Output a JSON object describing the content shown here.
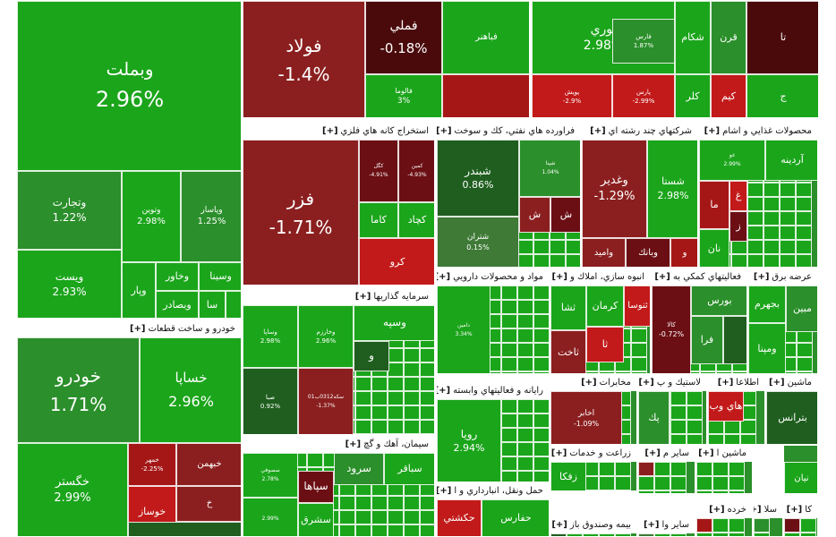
{
  "colors": {
    "g4": "#1ba51b",
    "g3": "#2b8f2b",
    "g2": "#3f7a37",
    "g1": "#1f5e1f",
    "r1": "#8b1f1f",
    "r2": "#a51717",
    "r3": "#c21a1a",
    "r4": "#6b0f14",
    "r5": "#4a0a0c"
  },
  "chart_data": {
    "type": "treemap",
    "title": "",
    "sectors": [
      {
        "id": "s-metals",
        "name": "",
        "tiles": [
          {
            "id": "t-vbmellat",
            "label": "وبملت",
            "change": "2.96%",
            "color": "g4"
          },
          {
            "id": "t-vtejarat",
            "label": "وتجارت",
            "change": "1.22%",
            "color": "g3"
          },
          {
            "id": "t-vtoein",
            "label": "وتوين",
            "change": "2.98%",
            "color": "g4"
          },
          {
            "id": "t-vpasar",
            "label": "وپاسار",
            "change": "1.25%",
            "color": "g3"
          },
          {
            "id": "t-vpost",
            "label": "ويست",
            "change": "2.93%",
            "color": "g4"
          },
          {
            "id": "t-vkhavar",
            "label": "وخاور",
            "change": "",
            "color": "g4"
          },
          {
            "id": "t-vsina",
            "label": "وسينا",
            "change": "",
            "color": "g4"
          },
          {
            "id": "t-vpar",
            "label": "وپار",
            "change": "",
            "color": "g4"
          },
          {
            "id": "t-vbsader",
            "label": "وبصادر",
            "change": "",
            "color": "g4"
          },
          {
            "id": "t-sa",
            "label": "سا",
            "change": "",
            "color": "g4"
          },
          {
            "id": "t-small-01",
            "label": "",
            "change": "",
            "color": "g4"
          }
        ]
      },
      {
        "id": "s-auto",
        "name": "خودرو و ساخت قطعات",
        "tiles": [
          {
            "id": "t-khodro",
            "label": "خودرو",
            "change": "1.71%",
            "color": "g3"
          },
          {
            "id": "t-khsapa",
            "label": "خساپا",
            "change": "2.96%",
            "color": "g4"
          },
          {
            "id": "t-khgostar",
            "label": "خگستر",
            "change": "2.99%",
            "color": "g4"
          },
          {
            "id": "t-khbahman",
            "label": "خبهمن",
            "change": "",
            "color": "r1"
          },
          {
            "id": "t-khmehr",
            "label": "خمهر",
            "change": "-2.25%",
            "color": "r2"
          },
          {
            "id": "t-kh",
            "label": "خ",
            "change": "",
            "color": "r1"
          },
          {
            "id": "t-khosaz",
            "label": "خوساز",
            "change": "",
            "color": "r3"
          },
          {
            "id": "t-auto-b1",
            "label": "",
            "change": "",
            "color": "g1"
          }
        ]
      },
      {
        "id": "s-basic",
        "name": "",
        "tiles": [
          {
            "id": "t-foolad",
            "label": "فولاد",
            "change": "-1.4%",
            "color": "r1"
          },
          {
            "id": "t-fameli",
            "label": "فملي",
            "change": "-0.18%",
            "color": "r5"
          },
          {
            "id": "t-fabahonar",
            "label": "فباهنر",
            "change": "",
            "color": "g4"
          },
          {
            "id": "t-faluma",
            "label": "فالوما",
            "change": "3%",
            "color": "g4"
          },
          {
            "id": "t-basic-s1",
            "label": "",
            "change": "",
            "color": "r2"
          }
        ]
      },
      {
        "id": "s-petro",
        "name": "",
        "tiles": [
          {
            "id": "t-noori",
            "label": "نوري",
            "change": "2.98%",
            "color": "g4"
          },
          {
            "id": "t-fars",
            "label": "فارس",
            "change": "1.87%",
            "color": "g3"
          },
          {
            "id": "t-pooyesh",
            "label": "پويش",
            "change": "-2.9%",
            "color": "r3"
          },
          {
            "id": "t-parsi",
            "label": "پارس",
            "change": "-2.99%",
            "color": "r3"
          },
          {
            "id": "t-shkam",
            "label": "شكام",
            "change": "",
            "color": "g4"
          },
          {
            "id": "t-karan",
            "label": "قرن",
            "change": "",
            "color": "g3"
          },
          {
            "id": "t-kal",
            "label": "كلر",
            "change": "",
            "color": "g4"
          },
          {
            "id": "t-kim",
            "label": "كيم",
            "change": "",
            "color": "r3"
          },
          {
            "id": "t-ta",
            "label": "تا",
            "change": "",
            "color": "r5"
          },
          {
            "id": "t-j",
            "label": "ج",
            "change": "",
            "color": "g4"
          }
        ]
      },
      {
        "id": "s-mining",
        "name": "استخراج كانه هاي فلزي",
        "tiles": [
          {
            "id": "t-fazer",
            "label": "فزر",
            "change": "-1.71%",
            "color": "r1"
          },
          {
            "id": "t-kagol",
            "label": "كگل",
            "change": "-4.91%",
            "color": "r4"
          },
          {
            "id": "t-kamin",
            "label": "كمين",
            "change": "-4.93%",
            "color": "r4"
          },
          {
            "id": "t-kama",
            "label": "كاما",
            "change": "",
            "color": "g4"
          },
          {
            "id": "t-kchad",
            "label": "كچاد",
            "change": "",
            "color": "g4"
          },
          {
            "id": "t-kro",
            "label": "كرو",
            "change": "",
            "color": "r3"
          }
        ]
      },
      {
        "id": "s-oil",
        "name": "فراورده هاي نفتي، كك و سوخت",
        "tiles": [
          {
            "id": "t-shbandar",
            "label": "شبندر",
            "change": "0.86%",
            "color": "g1"
          },
          {
            "id": "t-shtran",
            "label": "شتران",
            "change": "0.15%",
            "color": "g2"
          },
          {
            "id": "t-shpna",
            "label": "شپنا",
            "change": "1.04%",
            "color": "g3"
          },
          {
            "id": "t-sh1",
            "label": "ش",
            "change": "",
            "color": "r1"
          },
          {
            "id": "t-sh2",
            "label": "ش",
            "change": "",
            "color": "r4"
          }
        ]
      },
      {
        "id": "s-multi",
        "name": "شركتهاي چند رشته اي",
        "tiles": [
          {
            "id": "t-vghadir",
            "label": "وغدير",
            "change": "-1.29%",
            "color": "r1"
          },
          {
            "id": "t-shasta",
            "label": "شستا",
            "change": "2.98%",
            "color": "g4"
          },
          {
            "id": "t-vamid",
            "label": "واميد",
            "change": "",
            "color": "r1"
          },
          {
            "id": "t-vbank",
            "label": "وبانك",
            "change": "",
            "color": "r4"
          },
          {
            "id": "t-vo",
            "label": "و",
            "change": "",
            "color": "r2"
          }
        ]
      },
      {
        "id": "s-food",
        "name": "محصولات غذايي و اشام",
        "tiles": [
          {
            "id": "t-ardine",
            "label": "آردينه",
            "change": "",
            "color": "g4"
          },
          {
            "id": "t-ghoo",
            "label": "غو",
            "change": "2.99%",
            "color": "g4"
          },
          {
            "id": "t-ghesha",
            "label": "غ",
            "change": "",
            "color": "r3"
          },
          {
            "id": "t-ma",
            "label": "ما",
            "change": "",
            "color": "r2"
          },
          {
            "id": "t-naan",
            "label": "نان",
            "change": "",
            "color": "g4"
          },
          {
            "id": "t-z",
            "label": "ز",
            "change": "",
            "color": "r4"
          }
        ]
      },
      {
        "id": "s-pharma",
        "name": "مواد و محصولات دارويي",
        "tiles": [
          {
            "id": "t-daru1",
            "label": "دامين",
            "change": "3.34%",
            "color": "g4"
          }
        ]
      },
      {
        "id": "s-build",
        "name": "انبوه سازي، املاك و",
        "tiles": [
          {
            "id": "t-kerman",
            "label": "كرمان",
            "change": "",
            "color": "g4"
          },
          {
            "id": "t-sanosa",
            "label": "ثنوسا",
            "change": "",
            "color": "r3"
          },
          {
            "id": "t-shaa",
            "label": "ثشا",
            "change": "",
            "color": "g4"
          },
          {
            "id": "t-ta2",
            "label": "ثا",
            "change": "",
            "color": "r3"
          },
          {
            "id": "t-sasht",
            "label": "ثاخت",
            "change": "",
            "color": "r1"
          }
        ]
      },
      {
        "id": "s-finance",
        "name": "فعاليتهاي كمكي به",
        "tiles": [
          {
            "id": "t-bours",
            "label": "بورس",
            "change": "",
            "color": "g3"
          },
          {
            "id": "t-kala",
            "label": "كالا",
            "change": "-0.72%",
            "color": "r4"
          },
          {
            "id": "t-fara",
            "label": "فرا",
            "change": "",
            "color": "g3"
          },
          {
            "id": "t-fin-s1",
            "label": "",
            "change": "",
            "color": "g1"
          }
        ]
      },
      {
        "id": "s-power",
        "name": "عرضه برق",
        "tiles": [
          {
            "id": "t-bjahrom",
            "label": "بجهرم",
            "change": "",
            "color": "g4"
          },
          {
            "id": "t-mapna",
            "label": "مپنا",
            "change": "",
            "color": "g3"
          },
          {
            "id": "t-vmapna",
            "label": "ومپنا",
            "change": "",
            "color": "g4"
          },
          {
            "id": "t-mobin",
            "label": "مبين",
            "change": "",
            "color": "g3"
          }
        ]
      },
      {
        "id": "s-invest",
        "name": "سرمايه گذاريها",
        "tiles": [
          {
            "id": "t-vsapa",
            "label": "وساپا",
            "change": "2.98%",
            "color": "g4"
          },
          {
            "id": "t-vkharazm",
            "label": "وخارزم",
            "change": "2.96%",
            "color": "g4"
          },
          {
            "id": "t-vsepe",
            "label": "وسپه",
            "change": "",
            "color": "g4"
          },
          {
            "id": "t-vo2",
            "label": "و",
            "change": "",
            "color": "g1"
          },
          {
            "id": "t-sima",
            "label": "صبا",
            "change": "0.92%",
            "color": "g1"
          },
          {
            "id": "t-seke",
            "label": "سكه0312ب01",
            "change": "-1.37%",
            "color": "r1"
          }
        ]
      },
      {
        "id": "s-cement",
        "name": "سيمان، آهك و گچ",
        "tiles": [
          {
            "id": "t-sarood",
            "label": "سرود",
            "change": "",
            "color": "g3"
          },
          {
            "id": "t-sapaha",
            "label": "سپاها",
            "change": "",
            "color": "r4"
          },
          {
            "id": "t-sbaghar",
            "label": "سباقر",
            "change": "",
            "color": "g4"
          },
          {
            "id": "t-smoto",
            "label": "سصوفي",
            "change": "2.78%",
            "color": "g4"
          },
          {
            "id": "t-sharq",
            "label": "سشرق",
            "change": "",
            "color": "g4"
          },
          {
            "id": "t-cem-s1",
            "label": "",
            "change": "2.99%",
            "color": "g4"
          }
        ]
      },
      {
        "id": "s-it",
        "name": "رايانه و فعاليتهاي وابسته",
        "tiles": [
          {
            "id": "t-riva",
            "label": "رويا",
            "change": "2.94%",
            "color": "g4"
          }
        ]
      },
      {
        "id": "s-telecom",
        "name": "مخابرات",
        "tiles": [
          {
            "id": "t-akhaber",
            "label": "اخابر",
            "change": "-1.09%",
            "color": "r1"
          }
        ]
      },
      {
        "id": "s-plastic",
        "name": "لاستيك و پ",
        "tiles": [
          {
            "id": "t-pak",
            "label": "پك",
            "change": "",
            "color": "g3"
          }
        ]
      },
      {
        "id": "s-info",
        "name": "اطلاعا",
        "tiles": [
          {
            "id": "t-hiweb",
            "label": "هاي وب",
            "change": "",
            "color": "r3"
          }
        ]
      },
      {
        "id": "s-machine",
        "name": "ماشين",
        "tiles": [
          {
            "id": "t-btrans",
            "label": "بترانس",
            "change": "",
            "color": "g1"
          }
        ]
      },
      {
        "id": "s-agri",
        "name": "زراعت و خدمات",
        "tiles": [
          {
            "id": "t-zkarka",
            "label": "زفكا",
            "change": "",
            "color": "g4"
          }
        ]
      },
      {
        "id": "s-transport",
        "name": "حمل ونقل، انبارداري و ا",
        "tiles": [
          {
            "id": "t-hafars",
            "label": "حفارس",
            "change": "",
            "color": "g4"
          },
          {
            "id": "t-hakshti",
            "label": "حكشتي",
            "change": "",
            "color": "r3"
          }
        ]
      },
      {
        "id": "s-other",
        "name": "ساير م",
        "tiles": []
      },
      {
        "id": "s-machine2",
        "name": "ماشين ا",
        "tiles": []
      },
      {
        "id": "s-nian",
        "name": "",
        "tiles": [
          {
            "id": "t-nian",
            "label": "نيان",
            "change": "",
            "color": "g4"
          }
        ]
      },
      {
        "id": "s-insurance",
        "name": "بيمه وصندوق باز",
        "tiles": []
      },
      {
        "id": "s-other2",
        "name": "ساير وا",
        "tiles": []
      },
      {
        "id": "s-retail",
        "name": "خرده",
        "tiles": []
      },
      {
        "id": "s-sala",
        "name": "سلا",
        "tiles": []
      },
      {
        "id": "s-ka",
        "name": "كا",
        "tiles": []
      }
    ]
  }
}
